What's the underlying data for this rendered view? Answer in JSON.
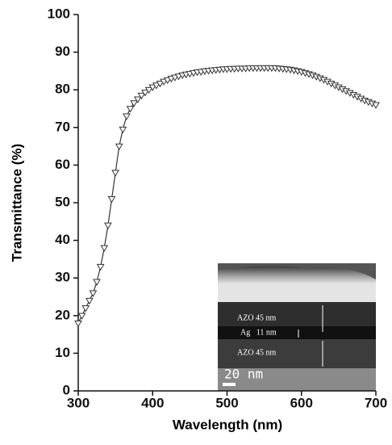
{
  "chart_data": {
    "type": "line",
    "x_label": "Wavelength (nm)",
    "y_label": "Transmittance (%)",
    "x": [
      300,
      305,
      310,
      315,
      320,
      325,
      330,
      335,
      340,
      345,
      350,
      355,
      360,
      365,
      370,
      375,
      380,
      385,
      390,
      395,
      400,
      405,
      410,
      415,
      420,
      425,
      430,
      435,
      440,
      445,
      450,
      455,
      460,
      465,
      470,
      475,
      480,
      485,
      490,
      495,
      500,
      505,
      510,
      515,
      520,
      525,
      530,
      535,
      540,
      545,
      550,
      555,
      560,
      565,
      570,
      575,
      580,
      585,
      590,
      595,
      600,
      605,
      610,
      615,
      620,
      625,
      630,
      635,
      640,
      645,
      650,
      655,
      660,
      665,
      670,
      675,
      680,
      685,
      690,
      695,
      700
    ],
    "series": [
      {
        "color": "#333333",
        "values": [
          18,
          20,
          22,
          24,
          26,
          29,
          33,
          38,
          44,
          51,
          58,
          65,
          69.5,
          73,
          75,
          76.5,
          77.5,
          78.5,
          79.3,
          80,
          80.7,
          81.2,
          81.7,
          82.2,
          82.6,
          83,
          83.3,
          83.6,
          83.9,
          84.1,
          84.3,
          84.5,
          84.7,
          84.8,
          85,
          85.1,
          85.2,
          85.3,
          85.4,
          85.5,
          85.5,
          85.6,
          85.6,
          85.7,
          85.7,
          85.7,
          85.8,
          85.8,
          85.8,
          85.8,
          85.8,
          85.8,
          85.8,
          85.8,
          85.7,
          85.6,
          85.5,
          85.4,
          85.2,
          85,
          84.8,
          84.5,
          84.2,
          83.9,
          83.5,
          83.1,
          82.7,
          82.2,
          81.7,
          81.2,
          80.7,
          80.2,
          79.7,
          79.2,
          78.7,
          78.2,
          77.7,
          77.2,
          76.8,
          76.4,
          76
        ]
      }
    ],
    "xlim": [
      300,
      700
    ],
    "xticks": [
      300,
      400,
      500,
      600,
      700
    ],
    "ylim": [
      0,
      100
    ],
    "yticks": [
      0,
      10,
      20,
      30,
      40,
      50,
      60,
      70,
      80,
      90,
      100
    ],
    "annotations": [
      "AZO 45 nm",
      "Ag   11 nm",
      "AZO 45 nm",
      "20 nm"
    ]
  }
}
